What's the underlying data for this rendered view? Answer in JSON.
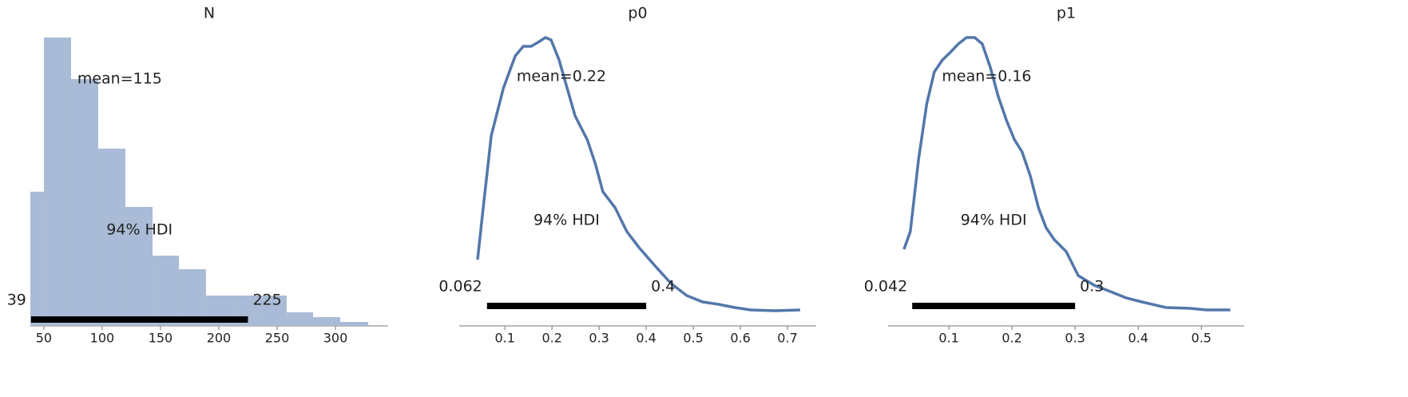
{
  "chart_data": [
    {
      "type": "histogram",
      "title": "N",
      "color": "#a9bbd6",
      "bins": [
        38.4,
        50,
        73.3,
        96.6,
        119.9,
        143.2,
        165.8,
        189,
        212.3,
        234.9,
        258.2,
        280.8,
        304.1,
        328.1
      ],
      "counts": [
        168,
        361,
        309,
        222,
        149,
        88,
        71,
        38,
        38,
        38,
        17,
        11,
        5
      ],
      "xlim": [
        38.4,
        345.2
      ],
      "xticks": [
        50,
        100,
        150,
        200,
        250,
        300
      ],
      "mean_label": "mean=115",
      "mean": 115,
      "hdi_label": "94% HDI",
      "hdi": [
        39,
        225
      ]
    },
    {
      "type": "kde",
      "title": "p0",
      "color": "#5377aa",
      "x": [
        0.042,
        0.054,
        0.071,
        0.097,
        0.122,
        0.139,
        0.156,
        0.173,
        0.186,
        0.198,
        0.215,
        0.232,
        0.249,
        0.275,
        0.292,
        0.308,
        0.334,
        0.359,
        0.385,
        0.419,
        0.453,
        0.486,
        0.52,
        0.554,
        0.588,
        0.622,
        0.673,
        0.727
      ],
      "values": [
        83,
        148,
        238,
        298,
        338,
        350,
        350,
        356,
        361,
        358,
        333,
        298,
        263,
        233,
        203,
        168,
        148,
        118,
        98,
        75,
        53,
        38,
        30,
        27,
        23,
        20,
        19,
        20
      ],
      "xlim": [
        0.003,
        0.761
      ],
      "xticks": [
        0.1,
        0.2,
        0.3,
        0.4,
        0.5,
        0.6,
        0.7
      ],
      "mean_label": "mean=0.22",
      "mean": 0.22,
      "hdi_label": "94% HDI",
      "hdi": [
        0.062,
        0.4
      ]
    },
    {
      "type": "kde",
      "title": "p1",
      "color": "#5377aa",
      "x": [
        0.029,
        0.039,
        0.052,
        0.065,
        0.077,
        0.09,
        0.103,
        0.115,
        0.128,
        0.141,
        0.153,
        0.166,
        0.178,
        0.191,
        0.204,
        0.216,
        0.229,
        0.242,
        0.254,
        0.267,
        0.286,
        0.305,
        0.33,
        0.356,
        0.381,
        0.406,
        0.444,
        0.482,
        0.508,
        0.546
      ],
      "values": [
        96,
        118,
        208,
        278,
        318,
        333,
        343,
        353,
        361,
        361,
        353,
        323,
        288,
        258,
        233,
        218,
        188,
        148,
        123,
        108,
        93,
        63,
        51,
        43,
        35,
        30,
        23,
        22,
        20,
        20
      ],
      "xlim": [
        0.0038,
        0.568
      ],
      "xticks": [
        0.1,
        0.2,
        0.3,
        0.4,
        0.5
      ],
      "mean_label": "mean=0.16",
      "mean": 0.16,
      "hdi_label": "94% HDI",
      "hdi": [
        0.042,
        0.3
      ]
    }
  ]
}
